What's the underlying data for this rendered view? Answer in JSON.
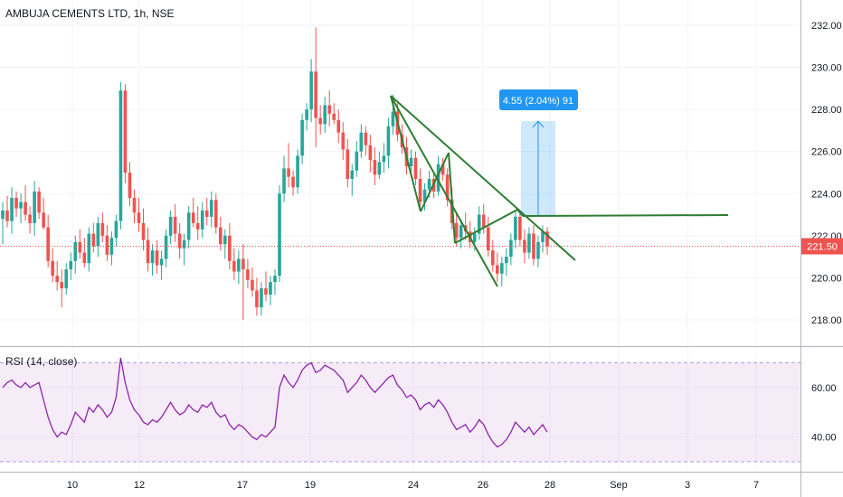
{
  "chart_data": [
    {
      "type": "candlestick",
      "title": "AMBUJA CEMENTS LTD, 1h, NSE",
      "y_ticks": [
        "218.00",
        "220.00",
        "222.00",
        "224.00",
        "226.00",
        "228.00",
        "230.00",
        "232.00"
      ],
      "y_range": [
        216.8,
        233.2
      ],
      "x_ticks": [
        "10",
        "12",
        "17",
        "19",
        "24",
        "26",
        "28",
        "Sep",
        "3",
        "7"
      ],
      "last_price": "221.50",
      "last_price_value": 221.5,
      "measure_label": "4.55 (2.04%) 91",
      "grid": true,
      "candles": [
        [
          222.8,
          223.6,
          221.6,
          223.2
        ],
        [
          223.2,
          223.9,
          222.4,
          222.7
        ],
        [
          222.7,
          224.3,
          222.1,
          223.8
        ],
        [
          223.8,
          224.1,
          222.9,
          223.3
        ],
        [
          223.3,
          224.0,
          222.6,
          223.6
        ],
        [
          223.6,
          224.4,
          222.7,
          223.0
        ],
        [
          223.0,
          223.4,
          222.1,
          222.6
        ],
        [
          222.6,
          224.6,
          222.0,
          224.1
        ],
        [
          224.1,
          224.3,
          222.8,
          223.1
        ],
        [
          223.1,
          223.8,
          222.3,
          222.4
        ],
        [
          222.4,
          223.0,
          220.5,
          220.8
        ],
        [
          220.8,
          221.4,
          219.8,
          220.1
        ],
        [
          220.1,
          220.8,
          219.4,
          219.8
        ],
        [
          219.8,
          220.4,
          218.6,
          219.5
        ],
        [
          219.5,
          220.7,
          219.2,
          220.4
        ],
        [
          220.4,
          221.2,
          219.9,
          220.8
        ],
        [
          220.8,
          222.0,
          220.2,
          221.7
        ],
        [
          221.7,
          222.3,
          220.9,
          221.2
        ],
        [
          221.2,
          221.9,
          220.5,
          220.7
        ],
        [
          220.7,
          222.4,
          220.3,
          222.1
        ],
        [
          222.1,
          222.6,
          221.2,
          221.5
        ],
        [
          221.5,
          222.9,
          221.0,
          222.6
        ],
        [
          222.6,
          223.1,
          221.7,
          222.0
        ],
        [
          222.0,
          222.5,
          220.8,
          221.1
        ],
        [
          221.1,
          222.2,
          220.6,
          221.9
        ],
        [
          221.9,
          223.0,
          221.5,
          222.7
        ],
        [
          222.7,
          229.3,
          222.3,
          228.9
        ],
        [
          228.9,
          229.2,
          224.5,
          225.0
        ],
        [
          225.0,
          225.5,
          223.4,
          223.8
        ],
        [
          223.8,
          224.2,
          222.6,
          223.1
        ],
        [
          223.1,
          223.8,
          222.2,
          222.6
        ],
        [
          222.6,
          223.3,
          221.3,
          221.8
        ],
        [
          221.8,
          222.4,
          220.3,
          220.7
        ],
        [
          220.7,
          221.6,
          220.1,
          221.3
        ],
        [
          221.3,
          221.8,
          220.2,
          220.6
        ],
        [
          220.6,
          221.3,
          219.9,
          220.9
        ],
        [
          220.9,
          222.3,
          220.5,
          222.0
        ],
        [
          222.0,
          223.2,
          221.6,
          222.9
        ],
        [
          222.9,
          223.5,
          221.7,
          222.1
        ],
        [
          222.1,
          222.6,
          220.9,
          221.4
        ],
        [
          221.4,
          222.1,
          220.6,
          221.8
        ],
        [
          221.8,
          223.4,
          221.4,
          223.1
        ],
        [
          223.1,
          223.8,
          222.4,
          222.6
        ],
        [
          222.6,
          223.4,
          221.8,
          222.3
        ],
        [
          222.3,
          223.6,
          221.9,
          223.2
        ],
        [
          223.2,
          223.8,
          222.5,
          222.9
        ],
        [
          222.9,
          224.1,
          222.4,
          223.7
        ],
        [
          223.7,
          224.0,
          222.1,
          222.4
        ],
        [
          222.4,
          222.9,
          221.3,
          221.6
        ],
        [
          221.6,
          222.3,
          220.9,
          222.0
        ],
        [
          222.0,
          222.6,
          220.4,
          220.8
        ],
        [
          220.8,
          221.4,
          219.9,
          220.3
        ],
        [
          220.3,
          221.3,
          219.7,
          220.9
        ],
        [
          220.9,
          221.6,
          218.0,
          220.4
        ],
        [
          220.4,
          220.9,
          219.5,
          219.9
        ],
        [
          219.9,
          220.5,
          219.1,
          219.4
        ],
        [
          219.4,
          220.0,
          218.2,
          218.6
        ],
        [
          218.6,
          219.8,
          218.2,
          219.5
        ],
        [
          219.5,
          220.3,
          218.9,
          219.2
        ],
        [
          219.2,
          220.1,
          218.7,
          219.8
        ],
        [
          219.8,
          220.4,
          219.2,
          220.1
        ],
        [
          220.1,
          224.4,
          219.8,
          224.0
        ],
        [
          224.0,
          225.8,
          223.6,
          225.2
        ],
        [
          225.2,
          226.4,
          224.3,
          224.8
        ],
        [
          224.8,
          225.1,
          223.9,
          224.3
        ],
        [
          224.3,
          226.1,
          224.0,
          225.8
        ],
        [
          225.8,
          227.8,
          225.4,
          227.5
        ],
        [
          227.5,
          228.3,
          227.0,
          228.0
        ],
        [
          228.0,
          230.4,
          227.4,
          229.8
        ],
        [
          229.8,
          231.9,
          226.2,
          227.6
        ],
        [
          227.6,
          228.2,
          226.8,
          227.3
        ],
        [
          227.3,
          228.6,
          226.9,
          228.2
        ],
        [
          228.2,
          228.9,
          227.2,
          227.8
        ],
        [
          227.8,
          228.3,
          227.3,
          227.5
        ],
        [
          227.5,
          228.0,
          226.4,
          226.9
        ],
        [
          226.9,
          227.4,
          225.6,
          226.1
        ],
        [
          226.1,
          226.6,
          224.3,
          224.7
        ],
        [
          224.7,
          225.4,
          223.9,
          225.1
        ],
        [
          225.1,
          226.5,
          224.8,
          226.0
        ],
        [
          226.0,
          227.3,
          225.7,
          226.9
        ],
        [
          226.9,
          227.2,
          225.8,
          226.3
        ],
        [
          226.3,
          226.8,
          225.0,
          225.6
        ],
        [
          225.6,
          226.2,
          224.4,
          224.9
        ],
        [
          224.9,
          226.0,
          224.7,
          225.5
        ],
        [
          225.5,
          226.4,
          225.0,
          225.8
        ],
        [
          225.8,
          227.6,
          225.2,
          227.2
        ],
        [
          227.2,
          228.7,
          226.8,
          227.9
        ],
        [
          227.9,
          228.3,
          226.5,
          226.8
        ],
        [
          226.8,
          227.3,
          225.9,
          226.2
        ],
        [
          226.2,
          226.7,
          224.9,
          225.3
        ],
        [
          225.3,
          226.1,
          224.8,
          225.7
        ],
        [
          225.7,
          226.0,
          224.4,
          224.7
        ],
        [
          224.7,
          225.2,
          223.3,
          223.6
        ],
        [
          223.6,
          224.5,
          223.2,
          224.2
        ],
        [
          224.2,
          225.1,
          223.8,
          224.7
        ],
        [
          224.7,
          225.0,
          223.8,
          224.1
        ],
        [
          224.1,
          225.8,
          223.9,
          225.4
        ],
        [
          225.4,
          225.7,
          224.6,
          224.9
        ],
        [
          224.9,
          225.2,
          223.4,
          223.7
        ],
        [
          223.7,
          224.3,
          222.3,
          222.6
        ],
        [
          222.6,
          223.1,
          221.5,
          221.9
        ],
        [
          221.9,
          222.8,
          221.4,
          222.5
        ],
        [
          222.5,
          223.1,
          221.8,
          222.2
        ],
        [
          222.2,
          222.7,
          221.4,
          221.7
        ],
        [
          221.7,
          222.4,
          221.3,
          222.1
        ],
        [
          222.1,
          223.4,
          221.8,
          223.0
        ],
        [
          223.0,
          223.5,
          222.1,
          222.4
        ],
        [
          222.4,
          222.9,
          221.0,
          221.3
        ],
        [
          221.3,
          221.8,
          220.3,
          220.6
        ],
        [
          220.6,
          221.2,
          219.8,
          220.2
        ],
        [
          220.2,
          221.0,
          219.6,
          220.7
        ],
        [
          220.7,
          221.4,
          220.1,
          221.0
        ],
        [
          221.0,
          222.1,
          220.6,
          221.8
        ],
        [
          221.8,
          223.2,
          221.4,
          222.9
        ],
        [
          222.9,
          223.1,
          221.5,
          221.8
        ],
        [
          221.8,
          222.3,
          220.7,
          221.2
        ],
        [
          221.2,
          222.4,
          220.9,
          222.1
        ],
        [
          222.1,
          222.5,
          220.6,
          220.9
        ],
        [
          220.9,
          222.0,
          220.5,
          221.7
        ],
        [
          221.7,
          222.5,
          221.2,
          222.2
        ],
        [
          222.2,
          222.4,
          221.1,
          221.5
        ]
      ]
    },
    {
      "type": "line",
      "title": "RSI (14, close)",
      "y_ticks": [
        "40.00",
        "60.00"
      ],
      "y_range": [
        26,
        76
      ],
      "upper_band": 70,
      "lower_band": 30,
      "values": [
        60,
        62,
        63,
        61,
        60,
        62,
        60,
        61,
        62,
        55,
        48,
        43,
        40,
        42,
        41,
        45,
        50,
        48,
        46,
        52,
        50,
        53,
        51,
        48,
        50,
        56,
        72,
        62,
        55,
        51,
        49,
        46,
        45,
        47,
        46,
        48,
        51,
        54,
        51,
        49,
        50,
        53,
        51,
        50,
        53,
        52,
        54,
        50,
        48,
        49,
        45,
        43,
        45,
        44,
        42,
        40,
        39,
        41,
        40,
        42,
        44,
        60,
        65,
        62,
        60,
        63,
        67,
        69,
        70,
        66,
        67,
        69,
        68,
        67,
        65,
        63,
        58,
        60,
        62,
        65,
        63,
        60,
        58,
        60,
        62,
        64,
        65,
        61,
        59,
        56,
        57,
        55,
        51,
        53,
        54,
        52,
        55,
        53,
        50,
        46,
        43,
        44,
        45,
        42,
        44,
        47,
        45,
        41,
        38,
        36,
        37,
        39,
        42,
        46,
        44,
        42,
        44,
        41,
        43,
        45,
        42
      ]
    }
  ]
}
